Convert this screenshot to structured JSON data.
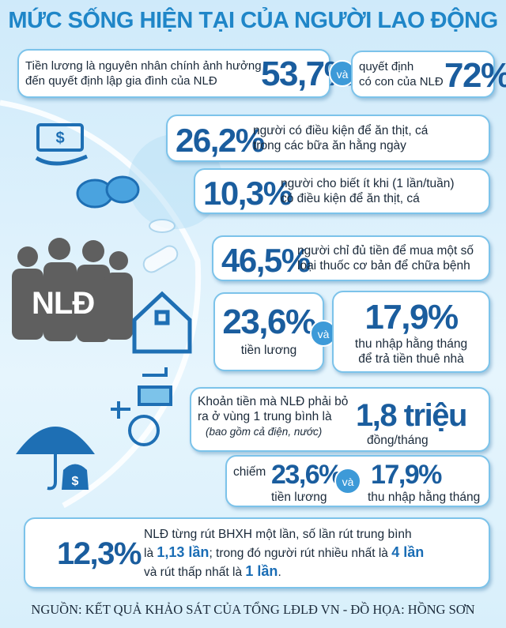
{
  "title": "MỨC SỐNG HIỆN TẠI CỦA NGƯỜI LAO ĐỘNG",
  "row1": {
    "box1": {
      "lines": [
        "Tiền lương là nguyên nhân chính ảnh hưởng",
        "đến quyết định lập gia đình của NLĐ"
      ],
      "value": "53,7%"
    },
    "connector": "và",
    "box2": {
      "lines": [
        "quyết định",
        "có con của NLĐ"
      ],
      "value": "72%"
    }
  },
  "items": [
    {
      "value": "26,2%",
      "lines": [
        "người có điều kiện để ăn thịt, cá",
        "trong các bữa ăn hằng ngày"
      ]
    },
    {
      "value": "10,3%",
      "lines": [
        "người cho biết ít khi (1 lần/tuần)",
        "có điều kiện để ăn thịt, cá"
      ]
    },
    {
      "value": "46,5%",
      "lines": [
        "người chỉ đủ tiền để mua một số",
        "loại thuốc cơ bản để chữa bệnh"
      ]
    }
  ],
  "rent": {
    "salary": {
      "value": "23,6%",
      "label": "tiền lương"
    },
    "connector": "và",
    "income": {
      "value": "17,9%",
      "lines": [
        "thu nhập hằng tháng",
        "để trả tiền thuê nhà"
      ]
    }
  },
  "cost": {
    "lines": [
      "Khoản tiền mà NLĐ phải bỏ",
      "ra ở vùng 1 trung bình là"
    ],
    "note": "(bao gồm cả điện, nước)",
    "value": "1,8 triệu",
    "unit": "đồng/tháng"
  },
  "share": {
    "prefix": "chiếm",
    "salary": {
      "value": "23,6%",
      "label": "tiền lương"
    },
    "connector": "và",
    "income": {
      "value": "17,9%",
      "label": "thu nhập hằng tháng"
    }
  },
  "bhxh": {
    "value": "12,3%",
    "segments": [
      "NLĐ từng rút BHXH một lần, số lần rút trung bình",
      "là",
      "1,13 lần",
      "; trong đó người rút nhiều nhất là",
      "4 lần",
      "và rút thấp nhất là",
      "1 lần",
      "."
    ]
  },
  "icon_label": "NLĐ",
  "source": "NGUỒN: KẾT QUẢ KHẢO SÁT CỦA TỔNG LĐLĐ VN - ĐỒ HỌA: HỒNG SƠN"
}
